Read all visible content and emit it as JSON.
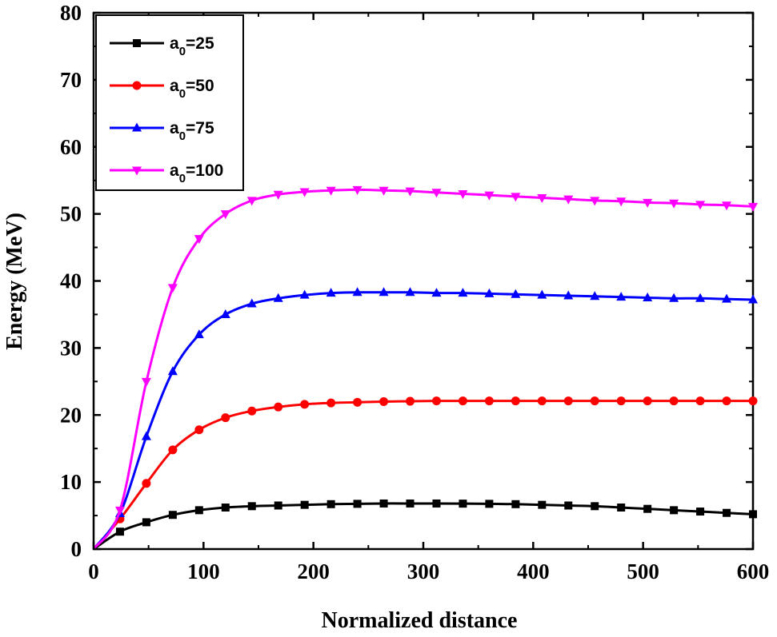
{
  "chart_data": {
    "type": "line",
    "xlabel": "Normalized distance",
    "ylabel": "Energy (MeV)",
    "xlim": [
      0,
      600
    ],
    "ylim": [
      0,
      80
    ],
    "xticks": [
      0,
      100,
      200,
      300,
      400,
      500,
      600
    ],
    "yticks": [
      0,
      10,
      20,
      30,
      40,
      50,
      60,
      70,
      80
    ],
    "grid": false,
    "legend_position": "top-left",
    "series": [
      {
        "name_base": "a",
        "name_sub": "0",
        "name_suffix": "=25",
        "color": "#000000",
        "marker": "square",
        "x": [
          0,
          24,
          48,
          72,
          96,
          120,
          144,
          168,
          192,
          216,
          240,
          264,
          288,
          312,
          336,
          360,
          384,
          408,
          432,
          456,
          480,
          504,
          528,
          552,
          576,
          600
        ],
        "y": [
          0,
          2.6,
          4.0,
          5.1,
          5.8,
          6.2,
          6.4,
          6.5,
          6.6,
          6.7,
          6.75,
          6.8,
          6.8,
          6.8,
          6.78,
          6.75,
          6.7,
          6.6,
          6.5,
          6.4,
          6.2,
          6.0,
          5.8,
          5.6,
          5.4,
          5.2
        ]
      },
      {
        "name_base": "a",
        "name_sub": "0",
        "name_suffix": "=50",
        "color": "#ff0000",
        "marker": "circle",
        "x": [
          0,
          24,
          48,
          72,
          96,
          120,
          144,
          168,
          192,
          216,
          240,
          264,
          288,
          312,
          336,
          360,
          384,
          408,
          432,
          456,
          480,
          504,
          528,
          552,
          576,
          600
        ],
        "y": [
          0,
          4.5,
          9.8,
          14.8,
          17.8,
          19.6,
          20.6,
          21.2,
          21.6,
          21.8,
          21.9,
          22.0,
          22.05,
          22.1,
          22.1,
          22.1,
          22.1,
          22.1,
          22.1,
          22.1,
          22.1,
          22.1,
          22.1,
          22.1,
          22.1,
          22.1
        ]
      },
      {
        "name_base": "a",
        "name_sub": "0",
        "name_suffix": "=75",
        "color": "#0000ff",
        "marker": "triangle-up",
        "x": [
          0,
          24,
          48,
          72,
          96,
          120,
          144,
          168,
          192,
          216,
          240,
          264,
          288,
          312,
          336,
          360,
          384,
          408,
          432,
          456,
          480,
          504,
          528,
          552,
          576,
          600
        ],
        "y": [
          0,
          5.3,
          16.8,
          26.5,
          32.0,
          35.0,
          36.6,
          37.4,
          37.9,
          38.2,
          38.3,
          38.3,
          38.3,
          38.2,
          38.2,
          38.1,
          38.0,
          37.9,
          37.8,
          37.7,
          37.6,
          37.5,
          37.4,
          37.4,
          37.3,
          37.2
        ]
      },
      {
        "name_base": "a",
        "name_sub": "0",
        "name_suffix": "=100",
        "color": "#ff00ff",
        "marker": "triangle-down",
        "x": [
          0,
          24,
          48,
          72,
          96,
          120,
          144,
          168,
          192,
          216,
          240,
          264,
          288,
          312,
          336,
          360,
          384,
          408,
          432,
          456,
          480,
          504,
          528,
          552,
          576,
          600
        ],
        "y": [
          0,
          5.8,
          25.0,
          39.0,
          46.3,
          50.0,
          52.0,
          52.9,
          53.3,
          53.5,
          53.6,
          53.5,
          53.4,
          53.2,
          53.0,
          52.8,
          52.6,
          52.4,
          52.2,
          52.0,
          51.9,
          51.7,
          51.6,
          51.4,
          51.3,
          51.1
        ]
      }
    ]
  }
}
